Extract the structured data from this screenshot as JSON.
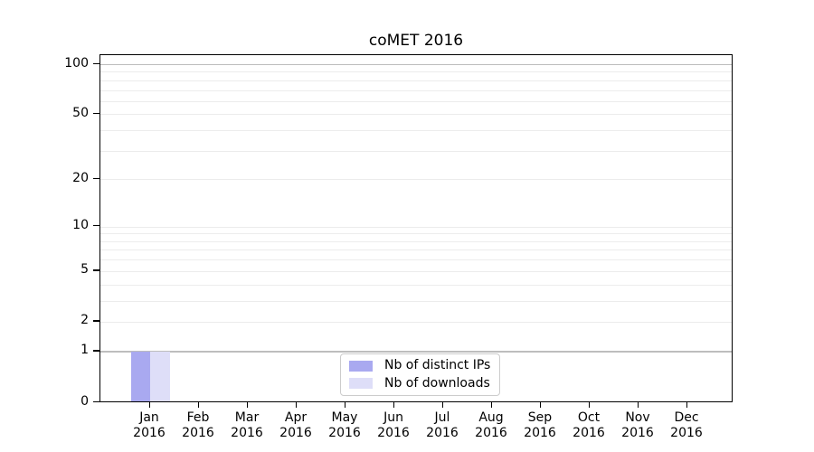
{
  "figure": {
    "title": "coMET 2016",
    "background": "#ffffff"
  },
  "colors": {
    "bar_distinct_ips": "#a9a9f0",
    "bar_downloads": "#dedef8",
    "axis": "#000000",
    "strong_grid": "#bdbdbd",
    "faint_grid": "#ececec",
    "legend_border": "#cccccc"
  },
  "chart_data": {
    "type": "bar",
    "title": "coMET 2016",
    "categories": [
      "Jan",
      "Feb",
      "Mar",
      "Apr",
      "May",
      "Jun",
      "Jul",
      "Aug",
      "Sep",
      "Oct",
      "Nov",
      "Dec"
    ],
    "category_year": "2016",
    "series": [
      {
        "name": "Nb of distinct IPs",
        "color": "#a9a9f0",
        "values": [
          1,
          0,
          0,
          0,
          0,
          0,
          0,
          0,
          0,
          0,
          0,
          0
        ]
      },
      {
        "name": "Nb of downloads",
        "color": "#dedef8",
        "values": [
          1,
          0,
          0,
          0,
          0,
          0,
          0,
          0,
          0,
          0,
          0,
          0
        ]
      }
    ],
    "y_axis": {
      "scale": "log1p",
      "tick_values": [
        0,
        1,
        2,
        5,
        10,
        20,
        50,
        100
      ],
      "range": [
        0,
        100
      ],
      "strong_gridlines": [
        1,
        100
      ],
      "faint_gridlines": [
        2,
        3,
        4,
        5,
        6,
        7,
        8,
        9,
        10,
        20,
        30,
        40,
        50,
        60,
        70,
        80,
        90
      ]
    },
    "xlabel": "",
    "ylabel": "",
    "grid": true,
    "legend_position": "bottom-center"
  }
}
